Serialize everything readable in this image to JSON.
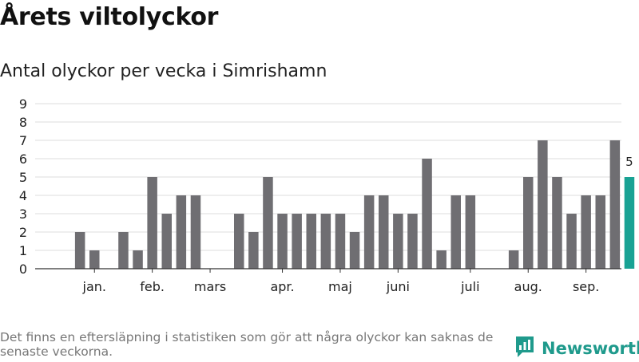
{
  "header": {
    "title": "Årets viltolyckor",
    "subtitle": "Antal olyckor per vecka i Simrishamn"
  },
  "footer": {
    "note": "Det finns en eftersläpning i statistiken som gör att några olyckor kan saknas de senaste veckorna.",
    "brand": "Newsworthy"
  },
  "colors": {
    "bar": "#6f6e72",
    "highlight": "#19a294",
    "grid": "#dddddd",
    "axis": "#333333",
    "brand": "#1f9a8c"
  },
  "chart_data": {
    "type": "bar",
    "title": "Antal olyckor per vecka i Simrishamn",
    "xlabel": "",
    "ylabel": "",
    "ylim": [
      0,
      9
    ],
    "yticks": [
      0,
      1,
      2,
      3,
      4,
      5,
      6,
      7,
      8,
      9
    ],
    "grid": true,
    "weeks": [
      1,
      2,
      3,
      4,
      5,
      6,
      7,
      8,
      9,
      10,
      11,
      12,
      13,
      14,
      15,
      16,
      17,
      18,
      19,
      20,
      21,
      22,
      23,
      24,
      25,
      26,
      27,
      28,
      29,
      30,
      31,
      32,
      33,
      34,
      35,
      36,
      37,
      38,
      39,
      40
    ],
    "values": [
      0,
      2,
      1,
      0,
      2,
      1,
      5,
      3,
      4,
      4,
      0,
      0,
      3,
      2,
      5,
      3,
      3,
      3,
      3,
      3,
      2,
      4,
      4,
      3,
      3,
      6,
      1,
      4,
      4,
      0,
      0,
      1,
      5,
      7,
      5,
      3,
      4,
      4,
      7,
      5
    ],
    "highlight_index": 39,
    "value_labels": [
      {
        "index": 39,
        "text": "5"
      }
    ],
    "month_labels": [
      {
        "label": "jan.",
        "week": 2.5
      },
      {
        "label": "feb.",
        "week": 6.5
      },
      {
        "label": "mars",
        "week": 10.5
      },
      {
        "label": "apr.",
        "week": 15.5
      },
      {
        "label": "maj",
        "week": 19.5
      },
      {
        "label": "juni",
        "week": 23.5
      },
      {
        "label": "juli",
        "week": 28.5
      },
      {
        "label": "aug.",
        "week": 32.5
      },
      {
        "label": "sep.",
        "week": 36.5
      }
    ]
  }
}
